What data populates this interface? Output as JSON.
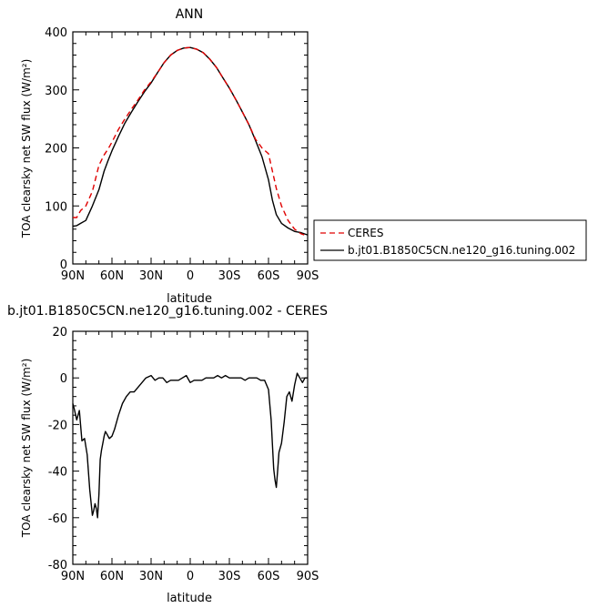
{
  "chart_data": [
    {
      "type": "line",
      "title": "ANN",
      "xlabel": "latitude",
      "ylabel": "TOA clearsky net SW flux (W/m²)",
      "x": [
        90,
        87,
        84,
        80,
        75,
        70,
        66,
        63,
        60,
        55,
        50,
        45,
        40,
        35,
        30,
        25,
        20,
        15,
        10,
        5,
        0,
        -5,
        -10,
        -15,
        -20,
        -25,
        -30,
        -35,
        -40,
        -45,
        -50,
        -55,
        -60,
        -63,
        -66,
        -70,
        -75,
        -80,
        -85,
        -90
      ],
      "xticks": [
        {
          "v": 90,
          "label": "90N"
        },
        {
          "v": 60,
          "label": "60N"
        },
        {
          "v": 30,
          "label": "30N"
        },
        {
          "v": 0,
          "label": "0"
        },
        {
          "v": -30,
          "label": "30S"
        },
        {
          "v": -60,
          "label": "60S"
        },
        {
          "v": -90,
          "label": "90S"
        }
      ],
      "xlim": [
        90,
        -90
      ],
      "ylim": [
        0,
        400
      ],
      "yticks": [
        0,
        100,
        200,
        300,
        400
      ],
      "series": [
        {
          "name": "CERES",
          "color": "#e00000",
          "dash": "6,4",
          "values": [
            80,
            80,
            92,
            100,
            125,
            170,
            188,
            198,
            210,
            232,
            250,
            267,
            283,
            300,
            314,
            330,
            347,
            360,
            368,
            372,
            373,
            370,
            364,
            353,
            339,
            321,
            303,
            283,
            262,
            240,
            215,
            200,
            190,
            160,
            130,
            100,
            75,
            60,
            52,
            48
          ]
        },
        {
          "name": "b.jt01.B1850C5CN.ne120_g16.tuning.002",
          "color": "#000000",
          "dash": "",
          "values": [
            65,
            66,
            70,
            75,
            100,
            128,
            160,
            178,
            195,
            220,
            243,
            262,
            280,
            297,
            312,
            330,
            347,
            360,
            368,
            372,
            373,
            370,
            364,
            353,
            339,
            321,
            303,
            283,
            262,
            240,
            213,
            185,
            145,
            110,
            85,
            70,
            62,
            56,
            54,
            50
          ]
        }
      ],
      "legend_position": "right"
    },
    {
      "type": "line",
      "title": "b.jt01.B1850C5CN.ne120_g16.tuning.002 - CERES",
      "xlabel": "latitude",
      "ylabel": "TOA clearsky net SW flux (W/m²)",
      "x": [
        90,
        89,
        87,
        85,
        83,
        81,
        79,
        77,
        75,
        74,
        73,
        72,
        71,
        70,
        69,
        68,
        67,
        66,
        65,
        64,
        62,
        60,
        58,
        55,
        52,
        49,
        46,
        43,
        40,
        37,
        34,
        30,
        27,
        24,
        21,
        18,
        15,
        12,
        9,
        6,
        3,
        0,
        -3,
        -6,
        -9,
        -12,
        -15,
        -18,
        -21,
        -24,
        -27,
        -30,
        -33,
        -36,
        -39,
        -42,
        -45,
        -48,
        -51,
        -54,
        -57,
        -60,
        -62,
        -64,
        -65,
        -66,
        -67,
        -68,
        -70,
        -72,
        -74,
        -76,
        -78,
        -80,
        -82,
        -84,
        -86,
        -88,
        -90
      ],
      "xticks": [
        {
          "v": 90,
          "label": "90N"
        },
        {
          "v": 60,
          "label": "60N"
        },
        {
          "v": 30,
          "label": "30N"
        },
        {
          "v": 0,
          "label": "0"
        },
        {
          "v": -30,
          "label": "30S"
        },
        {
          "v": -60,
          "label": "60S"
        },
        {
          "v": -90,
          "label": "90S"
        }
      ],
      "xlim": [
        90,
        -90
      ],
      "ylim": [
        -80,
        20
      ],
      "yticks": [
        -80,
        -60,
        -40,
        -20,
        0,
        20
      ],
      "series": [
        {
          "name": "",
          "color": "#000000",
          "dash": "",
          "values": [
            -11,
            -13,
            -18,
            -14,
            -27,
            -26,
            -33,
            -48,
            -59,
            -57,
            -54,
            -56,
            -60,
            -50,
            -35,
            -31,
            -28,
            -25,
            -23,
            -24,
            -26,
            -25,
            -22,
            -16,
            -11,
            -8,
            -6,
            -6,
            -4,
            -2,
            0,
            1,
            -1,
            0,
            0,
            -2,
            -1,
            -1,
            -1,
            0,
            1,
            -2,
            -1,
            -1,
            -1,
            0,
            0,
            0,
            1,
            0,
            1,
            0,
            0,
            0,
            0,
            -1,
            0,
            0,
            0,
            -1,
            -1,
            -5,
            -18,
            -39,
            -44,
            -47,
            -40,
            -32,
            -28,
            -19,
            -8,
            -6,
            -10,
            -3,
            2,
            0,
            -2,
            0,
            0
          ]
        }
      ]
    }
  ]
}
